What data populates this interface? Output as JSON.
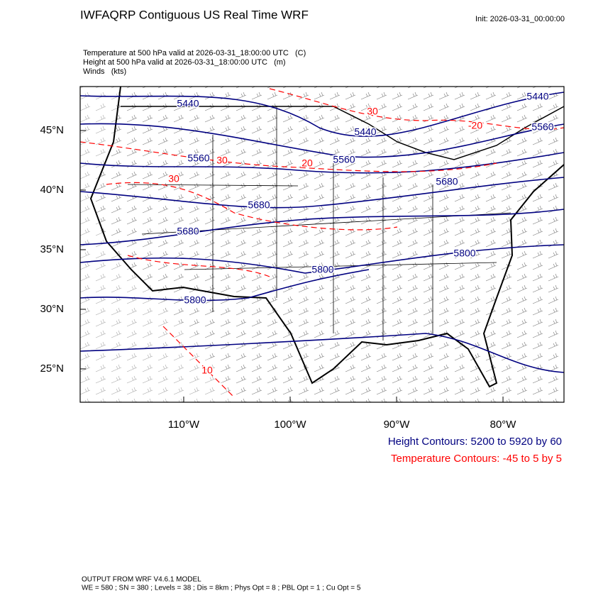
{
  "header": {
    "title": "IWFAQRP Contiguous US Real Time WRF",
    "init": "Init: 2026-03-31_00:00:00"
  },
  "fields": [
    "Temperature at 500 hPa valid at 2026-03-31_18:00:00 UTC   (C)",
    "Height at 500 hPa valid at 2026-03-31_18:00:00 UTC   (m)",
    "Winds   (kts)"
  ],
  "map": {
    "xlim": [
      -119.73,
      -74.27
    ],
    "ylim": [
      22.2,
      48.69
    ],
    "xticks": [
      {
        "value": -110,
        "label": "110°W"
      },
      {
        "value": -100,
        "label": "100°W"
      },
      {
        "value": -90,
        "label": "90°W"
      },
      {
        "value": -80,
        "label": "80°W"
      }
    ],
    "yticks": [
      {
        "value": 45,
        "label": "45°N"
      },
      {
        "value": 40,
        "label": "40°N"
      },
      {
        "value": 35,
        "label": "35°N"
      },
      {
        "value": 30,
        "label": "30°N"
      },
      {
        "value": 25,
        "label": "25°N"
      }
    ],
    "height_labels": [
      "5440",
      "5440",
      "5440",
      "5560",
      "5560",
      "5560",
      "5680",
      "5680",
      "5680",
      "5800",
      "5800",
      "5800"
    ],
    "height_color": "#000080",
    "temperature_labels": [
      "30",
      "-20",
      "20",
      "30",
      "30",
      "10"
    ],
    "temperature_color": "#ff0000"
  },
  "legend": [
    "Height Contours: 5200 to 5920 by 60",
    "Temperature Contours: -45 to 5 by 5"
  ],
  "footer": [
    "OUTPUT FROM WRF V4.6.1 MODEL",
    "WE = 580 ; SN = 380 ; Levels = 38 ; Dis = 8km ; Phys Opt = 8 ; PBL Opt = 1 ; Cu Opt = 5"
  ]
}
